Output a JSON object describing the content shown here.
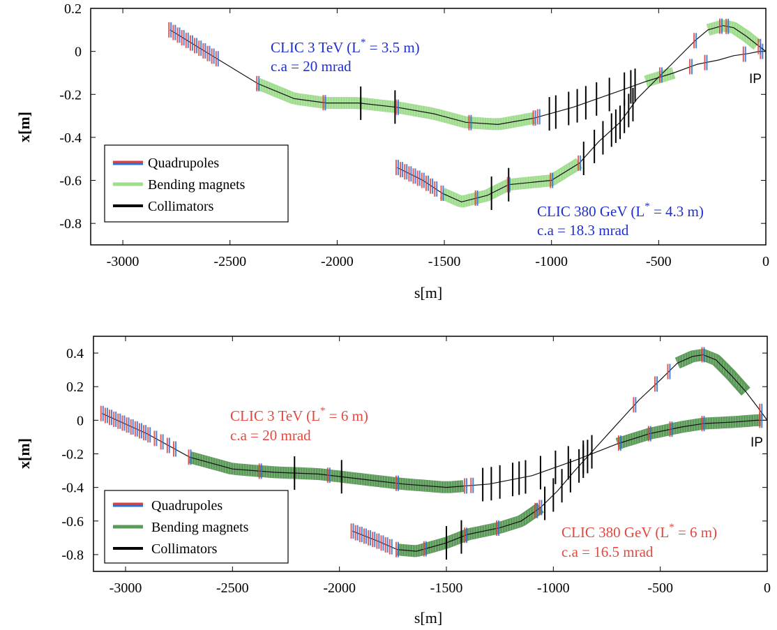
{
  "chart_data": [
    {
      "type": "line",
      "xlabel": "s[m]",
      "ylabel": "x[m]",
      "xlim": [
        -3150,
        0
      ],
      "ylim": [
        -0.9,
        0.2
      ],
      "x_ticks": [
        -3000,
        -2500,
        -2000,
        -1500,
        -1000,
        -500,
        0
      ],
      "y_ticks": [
        0.2,
        0,
        -0.2,
        -0.4,
        -0.6,
        -0.8
      ],
      "grid": false,
      "legend_position": "bottom-left",
      "legend": [
        "Quadrupoles",
        "Bending magnets",
        "Collimators"
      ],
      "colors": {
        "quad_red": "#e0403a",
        "quad_blue": "#2f6fd6",
        "bend": "#9fdc8e",
        "collimator": "#000000",
        "annotation": "#1e2fd0"
      },
      "ip_label": "IP",
      "series": [
        {
          "name": "CLIC 3 TeV (L* = 3.5 m)",
          "annotation": [
            "CLIC 3 TeV (L",
            "*",
            " = 3.5 m)"
          ],
          "crossing_angle": "c.a = 20 mrad",
          "x": [
            -2780,
            -2600,
            -2370,
            -2200,
            -2050,
            -1900,
            -1720,
            -1550,
            -1400,
            -1250,
            -1080,
            -900,
            -700,
            -560,
            -430,
            -320,
            -220,
            -150,
            -80,
            -30,
            0
          ],
          "y": [
            0.1,
            -0.01,
            -0.15,
            -0.22,
            -0.24,
            -0.24,
            -0.26,
            -0.29,
            -0.33,
            -0.34,
            -0.31,
            -0.26,
            -0.19,
            -0.14,
            -0.1,
            -0.06,
            -0.04,
            -0.02,
            -0.01,
            0.0,
            0.0
          ],
          "bend_segments": [
            [
              -2370,
              -1080
            ],
            [
              -560,
              -430
            ]
          ],
          "quadrupoles": [
            -2780,
            -2760,
            -2740,
            -2720,
            -2700,
            -2680,
            -2660,
            -2640,
            -2620,
            -2600,
            -2580,
            -2560,
            -2370,
            -2060,
            -1720,
            -1380,
            -1080,
            -1060,
            -350,
            -280,
            -100,
            -20
          ],
          "collimators": [
            -1890,
            -1730,
            -1010,
            -980,
            -920,
            -880,
            -840,
            -790,
            -730,
            -660,
            -630,
            -610
          ]
        },
        {
          "name": "CLIC 380 GeV (L* = 4.3 m)",
          "annotation": [
            "CLIC 380 GeV (L",
            "*",
            " = 4.3 m)"
          ],
          "crossing_angle": "c.a = 18.3 mrad",
          "x": [
            -1720,
            -1600,
            -1510,
            -1420,
            -1300,
            -1200,
            -1000,
            -870,
            -780,
            -680,
            -600,
            -500,
            -420,
            -330,
            -270,
            -200,
            -150,
            -90,
            -40,
            0
          ],
          "y": [
            -0.54,
            -0.6,
            -0.66,
            -0.7,
            -0.67,
            -0.62,
            -0.6,
            -0.52,
            -0.42,
            -0.33,
            -0.22,
            -0.12,
            -0.04,
            0.05,
            0.1,
            0.12,
            0.11,
            0.07,
            0.03,
            0.0
          ],
          "bend_segments": [
            [
              -1510,
              -870
            ],
            [
              -270,
              -40
            ]
          ],
          "quadrupoles": [
            -1720,
            -1700,
            -1680,
            -1660,
            -1640,
            -1620,
            -1600,
            -1580,
            -1560,
            -1540,
            -1510,
            -1350,
            -1200,
            -1000,
            -870,
            -490,
            -330,
            -210,
            -180,
            -30
          ],
          "collimators": [
            -1280,
            -1200,
            -850,
            -800,
            -760,
            -720,
            -700,
            -680,
            -660,
            -640,
            -620
          ]
        }
      ]
    },
    {
      "type": "line",
      "xlabel": "s[m]",
      "ylabel": "x[m]",
      "xlim": [
        -3150,
        0
      ],
      "ylim": [
        -0.9,
        0.5
      ],
      "x_ticks": [
        -3000,
        -2500,
        -2000,
        -1500,
        -1000,
        -500,
        0
      ],
      "y_ticks": [
        0.4,
        0.2,
        0,
        -0.2,
        -0.4,
        -0.6,
        -0.8
      ],
      "grid": false,
      "legend_position": "bottom-left",
      "legend": [
        "Quadrupoles",
        "Bending magnets",
        "Collimators"
      ],
      "colors": {
        "quad_red": "#e0403a",
        "quad_blue": "#2f6fd6",
        "bend": "#5b9a58",
        "collimator": "#000000",
        "annotation": "#e3483e"
      },
      "ip_label": "IP",
      "series": [
        {
          "name": "CLIC 3 TeV (L* = 6 m)",
          "annotation": [
            "CLIC 3 TeV (L",
            "*",
            " = 6 m)"
          ],
          "crossing_angle": "c.a = 20 mrad",
          "x": [
            -3110,
            -2900,
            -2700,
            -2500,
            -2300,
            -2100,
            -1900,
            -1700,
            -1500,
            -1300,
            -1100,
            -900,
            -700,
            -550,
            -400,
            -300,
            -150,
            -50,
            0
          ],
          "y": [
            0.04,
            -0.08,
            -0.22,
            -0.29,
            -0.31,
            -0.32,
            -0.35,
            -0.38,
            -0.4,
            -0.38,
            -0.33,
            -0.24,
            -0.14,
            -0.08,
            -0.04,
            -0.02,
            -0.01,
            0.0,
            0.0
          ],
          "bend_segments": [
            [
              -2700,
              -1420
            ],
            [
              -700,
              -30
            ]
          ],
          "quadrupoles": [
            -3110,
            -3090,
            -3070,
            -3050,
            -3030,
            -3010,
            -2990,
            -2970,
            -2950,
            -2930,
            -2910,
            -2890,
            -2860,
            -2830,
            -2800,
            -2770,
            -2700,
            -2370,
            -2050,
            -1730,
            -1410,
            -1380,
            -690,
            -550,
            -450,
            -300,
            -30
          ],
          "collimators": [
            -2210,
            -1990,
            -1330,
            -1290,
            -1250,
            -1190,
            -1160,
            -1130,
            -1060,
            -990,
            -930,
            -860
          ]
        },
        {
          "name": "CLIC 380 GeV (L* = 6 m)",
          "annotation": [
            "CLIC 380 GeV (L",
            "*",
            " = 6 m)"
          ],
          "crossing_angle": "c.a = 16.5 mrad",
          "x": [
            -1940,
            -1820,
            -1730,
            -1640,
            -1500,
            -1400,
            -1250,
            -1150,
            -1060,
            -980,
            -900,
            -800,
            -700,
            -600,
            -500,
            -420,
            -350,
            -300,
            -240,
            -170,
            -100,
            -40,
            0
          ],
          "y": [
            -0.66,
            -0.72,
            -0.77,
            -0.78,
            -0.73,
            -0.68,
            -0.64,
            -0.6,
            -0.52,
            -0.42,
            -0.3,
            -0.16,
            -0.02,
            0.12,
            0.24,
            0.34,
            0.38,
            0.39,
            0.36,
            0.27,
            0.17,
            0.07,
            0.0
          ],
          "bend_segments": [
            [
              -1730,
              -1060
            ],
            [
              -420,
              -100
            ]
          ],
          "quadrupoles": [
            -1940,
            -1920,
            -1900,
            -1880,
            -1860,
            -1840,
            -1820,
            -1800,
            -1780,
            -1760,
            -1730,
            -1600,
            -1410,
            -1260,
            -1080,
            -1060,
            -620,
            -520,
            -460,
            -300,
            -30
          ],
          "collimators": [
            -1500,
            -1430,
            -1040,
            -1000,
            -960,
            -920,
            -880,
            -860,
            -840,
            -820
          ]
        }
      ]
    }
  ]
}
